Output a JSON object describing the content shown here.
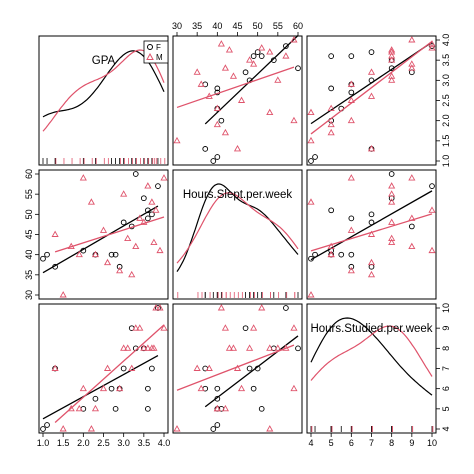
{
  "chart_data": {
    "type": "scatter",
    "variables": [
      "GPA",
      "Hours.Slept.per.week",
      "Hours.Studied.per.week"
    ],
    "ranges": [
      [
        1.0,
        4.0
      ],
      [
        30,
        60
      ],
      [
        4,
        10
      ]
    ],
    "ticks": [
      [
        "1.0",
        "1.5",
        "2.0",
        "2.5",
        "3.0",
        "3.5",
        "4.0"
      ],
      [
        "30",
        "35",
        "40",
        "45",
        "50",
        "55",
        "60"
      ],
      [
        "4",
        "5",
        "6",
        "7",
        "8",
        "9",
        "10"
      ]
    ],
    "tick_values": [
      [
        1.0,
        1.5,
        2.0,
        2.5,
        3.0,
        3.5,
        4.0
      ],
      [
        30,
        35,
        40,
        45,
        50,
        55,
        60
      ],
      [
        4,
        5,
        6,
        7,
        8,
        9,
        10
      ]
    ],
    "legend": {
      "entries": [
        {
          "label": "F",
          "symbol": "circle",
          "color": "#000000"
        },
        {
          "label": "M",
          "symbol": "triangle",
          "color": "#DF536B"
        }
      ],
      "position": "top-right"
    },
    "colors": {
      "F": "#000000",
      "M": "#DF536B"
    },
    "groups": {
      "F": {
        "GPA": [
          1.0,
          1.1,
          2.0,
          2.7,
          2.9,
          3.3,
          3.5,
          3.7,
          3.0,
          3.2,
          3.6,
          3.85,
          2.3,
          2.8,
          1.3,
          3.6
        ],
        "Hours.Slept.per.week": [
          39,
          40,
          41,
          40,
          37,
          60,
          54,
          50,
          48,
          47,
          51,
          57,
          40,
          40,
          37,
          49
        ],
        "Hours.Studied.per.week": [
          4,
          4.2,
          5,
          6,
          6,
          8,
          8,
          7,
          7,
          9,
          5,
          10,
          5.5,
          5,
          7,
          6
        ]
      },
      "M": {
        "GPA": [
          1.3,
          1.5,
          1.7,
          2.0,
          2.2,
          2.3,
          2.6,
          2.9,
          3.1,
          3.3,
          3.4,
          3.5,
          3.6,
          3.7,
          3.8,
          3.9,
          4.0,
          1.9,
          2.5,
          3.0,
          3.2,
          3.75
        ],
        "Hours.Slept.per.week": [
          45,
          30,
          42,
          59,
          53,
          40,
          38,
          36,
          44,
          42,
          49,
          48,
          57,
          53,
          51,
          41,
          59,
          40,
          46,
          55,
          35,
          43
        ],
        "Hours.Studied.per.week": [
          7,
          4,
          5,
          6,
          4,
          5,
          7,
          6,
          8,
          9,
          9,
          8,
          8,
          8,
          10,
          10,
          9,
          5,
          6,
          8,
          7,
          8
        ]
      }
    }
  }
}
